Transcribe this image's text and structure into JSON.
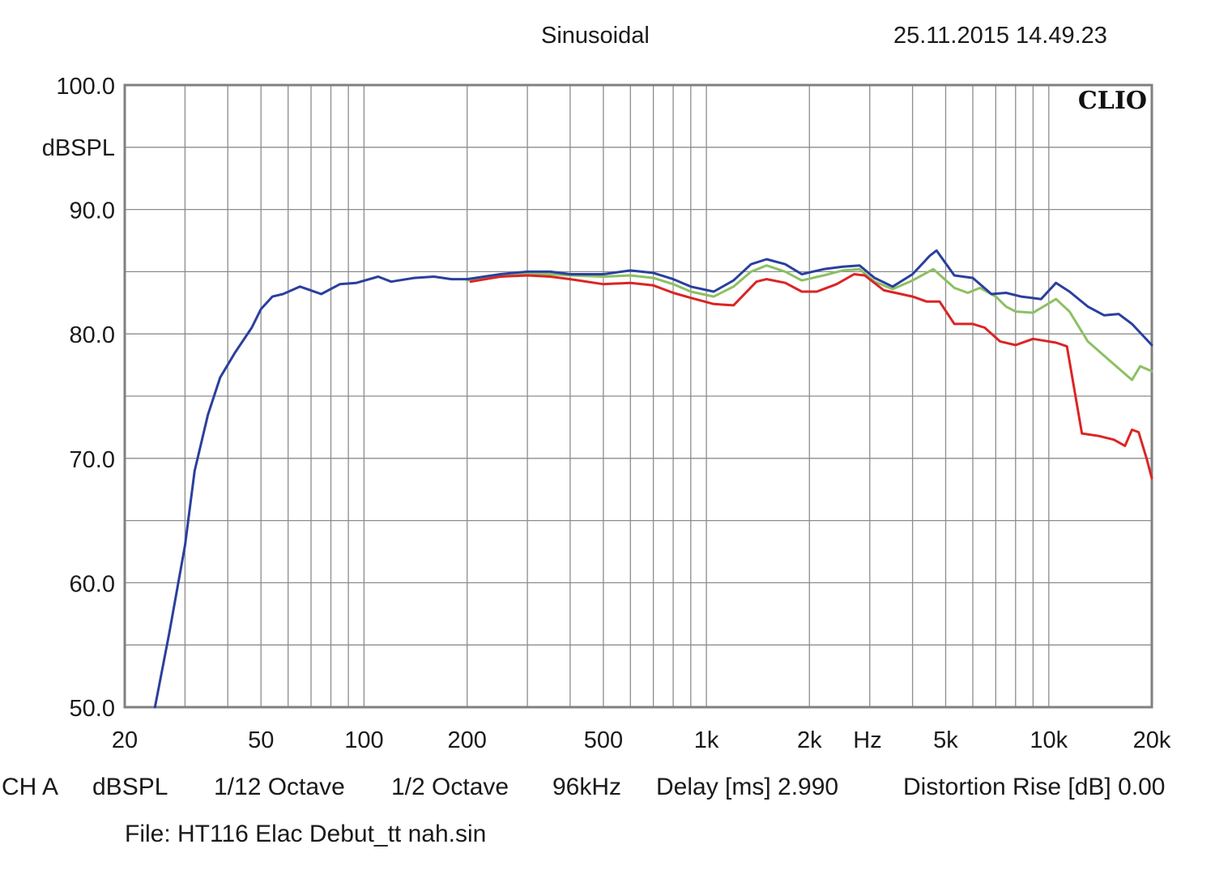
{
  "header": {
    "mode": "Sinusoidal",
    "timestamp": "25.11.2015 14.49.23"
  },
  "brand": "CLIO",
  "footer": {
    "channel": "CH A",
    "unit": "dBSPL",
    "smoothing": "1/12 Octave",
    "octave": "1/2 Octave",
    "sample_rate": "96kHz",
    "delay": "Delay [ms] 2.990",
    "distortion": "Distortion Rise [dB] 0.00",
    "file": "File: HT116 Elac Debut_tt nah.sin"
  },
  "colors": {
    "background": "#ffffff",
    "grid": "#8c8c8c",
    "frame": "#808080",
    "series": [
      "#2a3f9d",
      "#8cc063",
      "#dc2424"
    ]
  },
  "chart_data": {
    "type": "line",
    "x_scale": "log",
    "xlim": [
      20,
      20000
    ],
    "ylim": [
      50,
      100
    ],
    "ylabel": "dBSPL",
    "x_unit_label": "Hz",
    "grid": true,
    "y_ticks": [
      "100.0",
      "90.0",
      "80.0",
      "70.0",
      "60.0",
      "50.0"
    ],
    "x_ticks": [
      {
        "v": 20,
        "label": "20"
      },
      {
        "v": 50,
        "label": "50"
      },
      {
        "v": 100,
        "label": "100"
      },
      {
        "v": 200,
        "label": "200"
      },
      {
        "v": 500,
        "label": "500"
      },
      {
        "v": 1000,
        "label": "1k"
      },
      {
        "v": 2000,
        "label": "2k"
      },
      {
        "v": 5000,
        "label": "5k"
      },
      {
        "v": 10000,
        "label": "10k"
      },
      {
        "v": 20000,
        "label": "20k"
      }
    ],
    "series": [
      {
        "points": [
          [
            24.5,
            50
          ],
          [
            27,
            56
          ],
          [
            30,
            63
          ],
          [
            32,
            69
          ],
          [
            35,
            73.5
          ],
          [
            38,
            76.5
          ],
          [
            42,
            78.5
          ],
          [
            47,
            80.5
          ],
          [
            50,
            82
          ],
          [
            54,
            83
          ],
          [
            58,
            83.2
          ],
          [
            65,
            83.8
          ],
          [
            75,
            83.2
          ],
          [
            85,
            84
          ],
          [
            95,
            84.1
          ],
          [
            110,
            84.6
          ],
          [
            120,
            84.2
          ],
          [
            140,
            84.5
          ],
          [
            160,
            84.6
          ],
          [
            180,
            84.4
          ],
          [
            200,
            84.4
          ],
          [
            250,
            84.8
          ],
          [
            300,
            85
          ],
          [
            350,
            85
          ],
          [
            400,
            84.8
          ],
          [
            500,
            84.8
          ],
          [
            600,
            85.1
          ],
          [
            700,
            84.9
          ],
          [
            800,
            84.4
          ],
          [
            900,
            83.8
          ],
          [
            1050,
            83.4
          ],
          [
            1200,
            84.3
          ],
          [
            1350,
            85.6
          ],
          [
            1500,
            86
          ],
          [
            1700,
            85.6
          ],
          [
            1900,
            84.8
          ],
          [
            2200,
            85.2
          ],
          [
            2500,
            85.4
          ],
          [
            2800,
            85.5
          ],
          [
            3100,
            84.5
          ],
          [
            3500,
            83.8
          ],
          [
            4000,
            84.8
          ],
          [
            4500,
            86.3
          ],
          [
            4700,
            86.7
          ],
          [
            5300,
            84.7
          ],
          [
            6000,
            84.5
          ],
          [
            6800,
            83.2
          ],
          [
            7500,
            83.3
          ],
          [
            8300,
            83
          ],
          [
            9500,
            82.8
          ],
          [
            10500,
            84.1
          ],
          [
            11500,
            83.4
          ],
          [
            13000,
            82.2
          ],
          [
            14500,
            81.5
          ],
          [
            16000,
            81.6
          ],
          [
            17500,
            80.8
          ],
          [
            20000,
            79.1
          ]
        ]
      },
      {
        "points": [
          [
            200,
            84.3
          ],
          [
            250,
            84.6
          ],
          [
            300,
            84.8
          ],
          [
            350,
            84.8
          ],
          [
            400,
            84.7
          ],
          [
            500,
            84.6
          ],
          [
            600,
            84.7
          ],
          [
            700,
            84.5
          ],
          [
            800,
            84
          ],
          [
            900,
            83.4
          ],
          [
            1050,
            83
          ],
          [
            1200,
            83.8
          ],
          [
            1350,
            85
          ],
          [
            1500,
            85.5
          ],
          [
            1700,
            85
          ],
          [
            1900,
            84.3
          ],
          [
            2200,
            84.7
          ],
          [
            2500,
            85.1
          ],
          [
            2800,
            85.2
          ],
          [
            3100,
            84.2
          ],
          [
            3500,
            83.6
          ],
          [
            4000,
            84.3
          ],
          [
            4600,
            85.2
          ],
          [
            5300,
            83.7
          ],
          [
            5800,
            83.3
          ],
          [
            6300,
            83.7
          ],
          [
            7000,
            83
          ],
          [
            7500,
            82.2
          ],
          [
            8000,
            81.8
          ],
          [
            9000,
            81.7
          ],
          [
            10500,
            82.8
          ],
          [
            11500,
            81.8
          ],
          [
            13000,
            79.4
          ],
          [
            15000,
            77.9
          ],
          [
            17500,
            76.3
          ],
          [
            18500,
            77.4
          ],
          [
            20000,
            77
          ]
        ]
      },
      {
        "points": [
          [
            205,
            84.2
          ],
          [
            250,
            84.6
          ],
          [
            300,
            84.7
          ],
          [
            350,
            84.6
          ],
          [
            400,
            84.4
          ],
          [
            500,
            84
          ],
          [
            600,
            84.1
          ],
          [
            700,
            83.9
          ],
          [
            800,
            83.3
          ],
          [
            900,
            82.9
          ],
          [
            1050,
            82.4
          ],
          [
            1200,
            82.3
          ],
          [
            1400,
            84.2
          ],
          [
            1500,
            84.4
          ],
          [
            1700,
            84.1
          ],
          [
            1900,
            83.4
          ],
          [
            2100,
            83.4
          ],
          [
            2400,
            84
          ],
          [
            2700,
            84.8
          ],
          [
            2900,
            84.7
          ],
          [
            3300,
            83.5
          ],
          [
            4000,
            83
          ],
          [
            4400,
            82.6
          ],
          [
            4800,
            82.6
          ],
          [
            5300,
            80.8
          ],
          [
            6000,
            80.8
          ],
          [
            6500,
            80.5
          ],
          [
            7200,
            79.4
          ],
          [
            8000,
            79.1
          ],
          [
            9000,
            79.6
          ],
          [
            10500,
            79.3
          ],
          [
            11300,
            79
          ],
          [
            12500,
            72
          ],
          [
            14000,
            71.8
          ],
          [
            15500,
            71.5
          ],
          [
            16700,
            71
          ],
          [
            17500,
            72.3
          ],
          [
            18300,
            72.1
          ],
          [
            19300,
            70
          ],
          [
            20000,
            68.4
          ]
        ]
      }
    ]
  }
}
